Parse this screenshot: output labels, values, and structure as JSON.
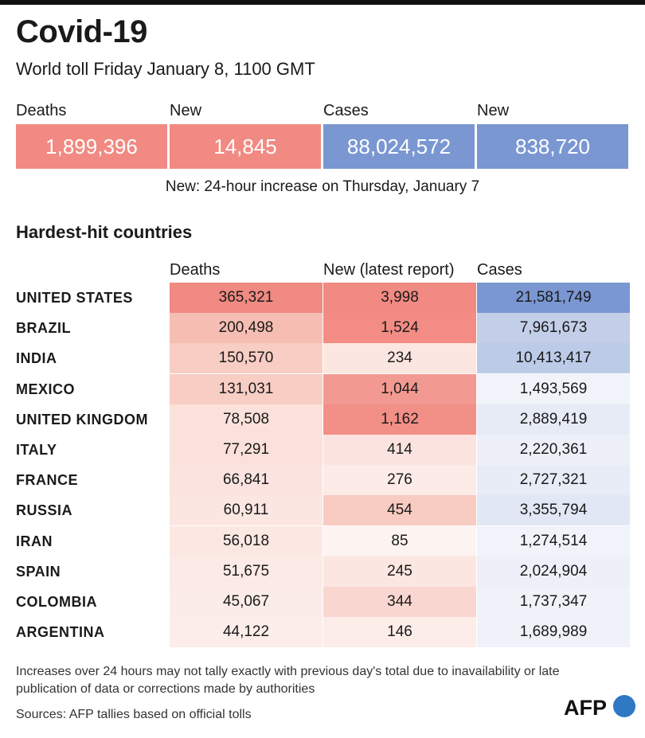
{
  "title": "Covid-19",
  "subtitle": "World toll Friday January 8,  1100 GMT",
  "summary": [
    {
      "label": "Deaths",
      "value": "1,899,396",
      "color": "#f08a82"
    },
    {
      "label": "New",
      "value": "14,845",
      "color": "#f08a82"
    },
    {
      "label": "Cases",
      "value": "88,024,572",
      "color": "#7a97d2"
    },
    {
      "label": "New",
      "value": "838,720",
      "color": "#7a97d2"
    }
  ],
  "summary_note": "New: 24-hour increase on Thursday, January 7",
  "section_title": "Hardest-hit countries",
  "columns": {
    "deaths": "Deaths",
    "new": "New (latest report)",
    "cases": "Cases"
  },
  "countries": [
    {
      "name": "UNITED STATES",
      "deaths": "365,321",
      "new": "3,998",
      "cases": "21,581,749",
      "deaths_bg": "#f08a82",
      "new_bg": "#f08a82",
      "cases_bg": "#7a97d2"
    },
    {
      "name": "BRAZIL",
      "deaths": "200,498",
      "new": "1,524",
      "cases": "7,961,673",
      "deaths_bg": "#f6bdb2",
      "new_bg": "#f28c84",
      "cases_bg": "#c3cfe9"
    },
    {
      "name": "INDIA",
      "deaths": "150,570",
      "new": "234",
      "cases": "10,413,417",
      "deaths_bg": "#f8cdc4",
      "new_bg": "#fce6e1",
      "cases_bg": "#bccbe8"
    },
    {
      "name": "MEXICO",
      "deaths": "131,031",
      "new": "1,044",
      "cases": "1,493,569",
      "deaths_bg": "#f8cdc4",
      "new_bg": "#f29a91",
      "cases_bg": "#f1f3fa"
    },
    {
      "name": "UNITED KINGDOM",
      "deaths": "78,508",
      "new": "1,162",
      "cases": "2,889,419",
      "deaths_bg": "#fbe1db",
      "new_bg": "#f28f87",
      "cases_bg": "#e6ebf6"
    },
    {
      "name": "ITALY",
      "deaths": "77,291",
      "new": "414",
      "cases": "2,220,361",
      "deaths_bg": "#fbe1db",
      "new_bg": "#fbe4df",
      "cases_bg": "#edf0f8"
    },
    {
      "name": "FRANCE",
      "deaths": "66,841",
      "new": "276",
      "cases": "2,727,321",
      "deaths_bg": "#fbe4df",
      "new_bg": "#fcebe7",
      "cases_bg": "#e8ecf7"
    },
    {
      "name": "RUSSIA",
      "deaths": "60,911",
      "new": "454",
      "cases": "3,355,794",
      "deaths_bg": "#fbe6e1",
      "new_bg": "#f8cbc3",
      "cases_bg": "#e1e7f4"
    },
    {
      "name": "IRAN",
      "deaths": "56,018",
      "new": "85",
      "cases": "1,274,514",
      "deaths_bg": "#fce8e3",
      "new_bg": "#fdf3f0",
      "cases_bg": "#f1f3fa"
    },
    {
      "name": "SPAIN",
      "deaths": "51,675",
      "new": "245",
      "cases": "2,024,904",
      "deaths_bg": "#fceae6",
      "new_bg": "#fbe6e1",
      "cases_bg": "#edf0f8"
    },
    {
      "name": "COLOMBIA",
      "deaths": "45,067",
      "new": "344",
      "cases": "1,737,347",
      "deaths_bg": "#fcece8",
      "new_bg": "#f9d7d0",
      "cases_bg": "#eff2f9"
    },
    {
      "name": "ARGENTINA",
      "deaths": "44,122",
      "new": "146",
      "cases": "1,689,989",
      "deaths_bg": "#fcede9",
      "new_bg": "#fcede9",
      "cases_bg": "#eff2f9"
    }
  ],
  "chart_data": {
    "type": "table",
    "title": "Covid-19",
    "subtitle": "World toll Friday January 8,  1100 GMT",
    "columns": [
      "Deaths",
      "New (latest report)",
      "Cases"
    ],
    "rows": [
      "UNITED STATES",
      "BRAZIL",
      "INDIA",
      "MEXICO",
      "UNITED KINGDOM",
      "ITALY",
      "FRANCE",
      "RUSSIA",
      "IRAN",
      "SPAIN",
      "COLOMBIA",
      "ARGENTINA"
    ],
    "series": [
      {
        "name": "Deaths",
        "values": [
          365321,
          200498,
          150570,
          131031,
          78508,
          77291,
          66841,
          60911,
          56018,
          51675,
          45067,
          44122
        ]
      },
      {
        "name": "New (latest report)",
        "values": [
          3998,
          1524,
          234,
          1044,
          1162,
          414,
          276,
          454,
          85,
          245,
          344,
          146
        ]
      },
      {
        "name": "Cases",
        "values": [
          21581749,
          7961673,
          10413417,
          1493569,
          2889419,
          2220361,
          2727321,
          3355794,
          1274514,
          2024904,
          1737347,
          1689989
        ]
      }
    ]
  },
  "footnote": "Increases over 24 hours may not tally exactly with previous day's total due to inavailability or late publication of data or corrections made by authorities",
  "sources": "Sources: AFP tallies based on official tolls",
  "logo": {
    "text": "AFP",
    "dot_color": "#2f78c4",
    "icon": "afp-logo-icon"
  }
}
